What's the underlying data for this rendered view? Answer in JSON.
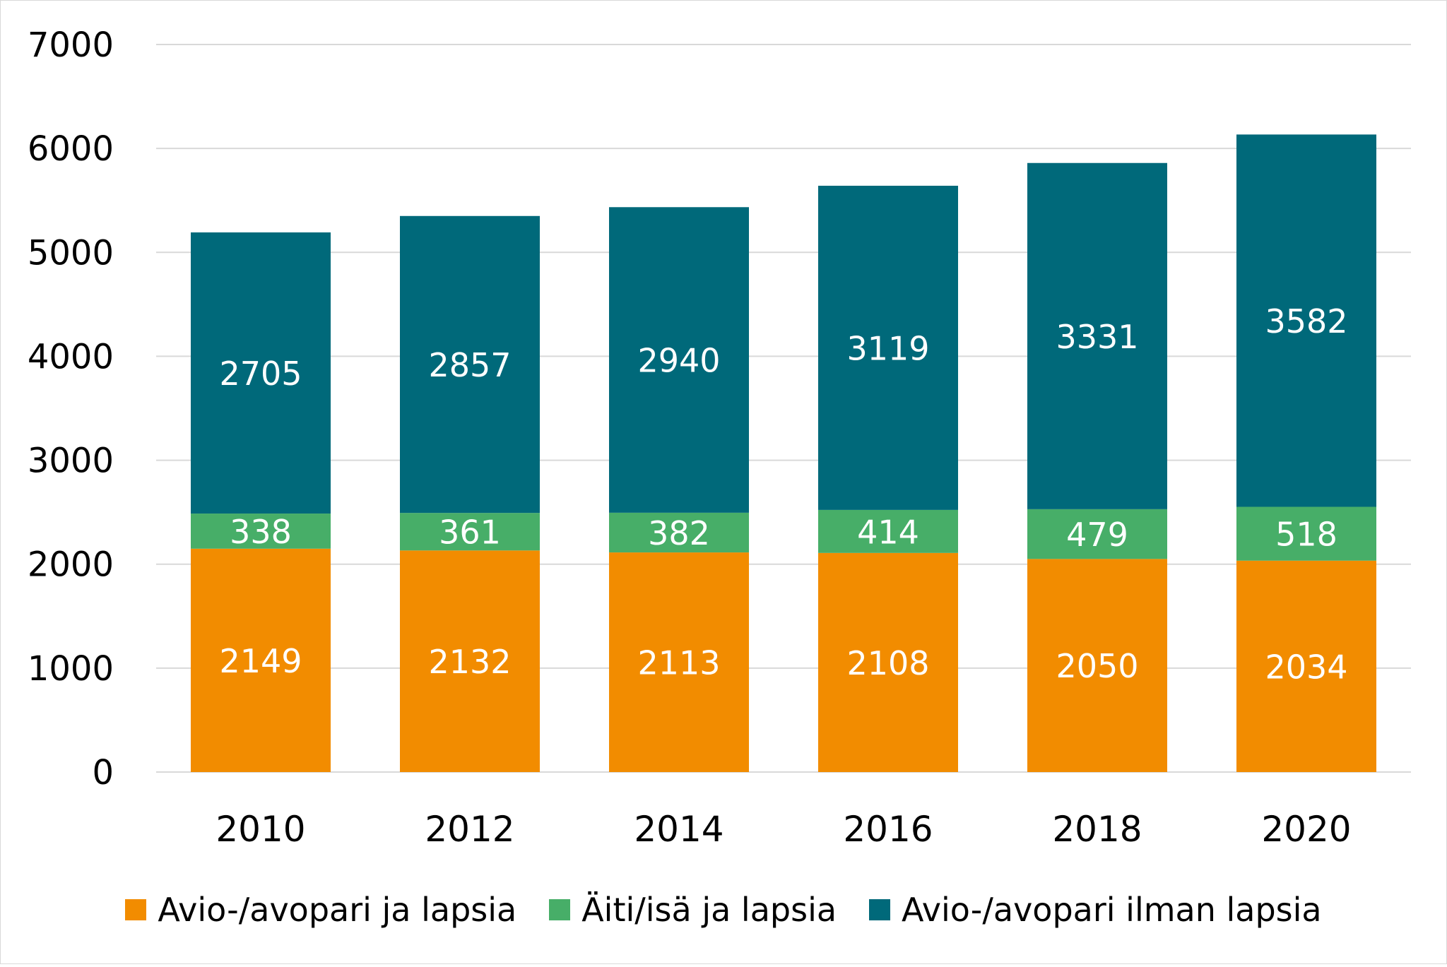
{
  "chart_data": {
    "type": "bar",
    "stacked": true,
    "categories": [
      "2010",
      "2012",
      "2014",
      "2016",
      "2018",
      "2020"
    ],
    "series": [
      {
        "name": "Avio-/avopari ja lapsia",
        "color": "#F28C00",
        "values": [
          2149,
          2132,
          2113,
          2108,
          2050,
          2034
        ]
      },
      {
        "name": "Äiti/isä ja lapsia",
        "color": "#47AE68",
        "values": [
          338,
          361,
          382,
          414,
          479,
          518
        ]
      },
      {
        "name": "Avio-/avopari ilman lapsia",
        "color": "#00697A",
        "values": [
          2705,
          2857,
          2940,
          3119,
          3331,
          3582
        ]
      }
    ],
    "ylim": [
      0,
      7000
    ],
    "yticks": [
      "0",
      "1000",
      "2000",
      "3000",
      "4000",
      "5000",
      "6000",
      "7000"
    ],
    "grid": true,
    "legend_position": "bottom",
    "data_labels": true,
    "label_color": "#FFFFFF",
    "gridline_color": "#D9D9D9"
  }
}
